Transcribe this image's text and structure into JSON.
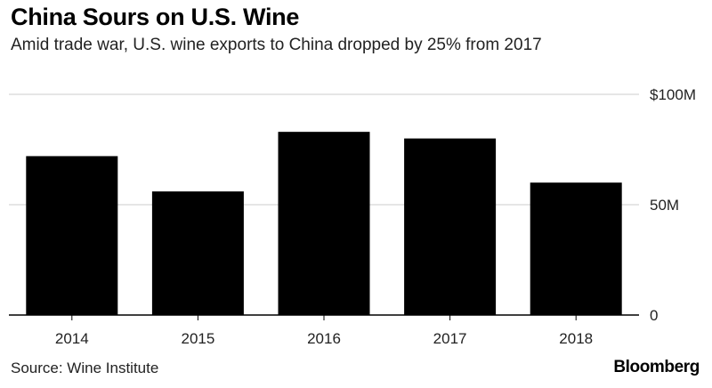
{
  "title": "China Sours on U.S. Wine",
  "subtitle": "Amid trade war, U.S. wine exports to China dropped by 25% from 2017",
  "source": "Source: Wine Institute",
  "brand": "Bloomberg",
  "colors": {
    "bar": "#000000",
    "grid": "#cccccc",
    "axis": "#000000"
  },
  "chart_data": {
    "type": "bar",
    "categories": [
      "2014",
      "2015",
      "2016",
      "2017",
      "2018"
    ],
    "values": [
      72,
      56,
      83,
      80,
      60
    ],
    "ylim": [
      0,
      100
    ],
    "yticks": [
      {
        "value": 0,
        "label": "0"
      },
      {
        "value": 50,
        "label": "50M"
      },
      {
        "value": 100,
        "label": "$100M"
      }
    ],
    "grid": true,
    "xlabel": "",
    "ylabel": ""
  }
}
